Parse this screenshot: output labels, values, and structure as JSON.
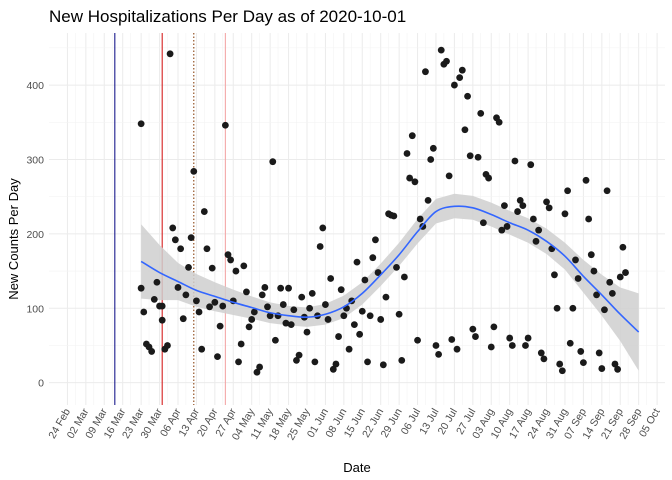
{
  "chart_data": {
    "type": "scatter",
    "title": "New Hospitalizations Per Day as of 2020-10-01",
    "xlabel": "Date",
    "ylabel": "New Counts Per Day",
    "x_domain": [
      "2020-02-17",
      "2020-10-08"
    ],
    "ylim": [
      -30,
      470
    ],
    "grid": true,
    "x_tick_dates": [
      "2020-02-24",
      "2020-03-02",
      "2020-03-09",
      "2020-03-16",
      "2020-03-23",
      "2020-03-30",
      "2020-04-06",
      "2020-04-13",
      "2020-04-20",
      "2020-04-27",
      "2020-05-04",
      "2020-05-11",
      "2020-05-18",
      "2020-05-25",
      "2020-06-01",
      "2020-06-08",
      "2020-06-15",
      "2020-06-22",
      "2020-06-29",
      "2020-07-06",
      "2020-07-13",
      "2020-07-20",
      "2020-07-27",
      "2020-08-03",
      "2020-08-10",
      "2020-08-17",
      "2020-08-24",
      "2020-08-31",
      "2020-09-07",
      "2020-09-14",
      "2020-09-21",
      "2020-09-28",
      "2020-10-05"
    ],
    "x_tick_labels": [
      "24 Feb",
      "02 Mar",
      "09 Mar",
      "16 Mar",
      "23 Mar",
      "30 Mar",
      "06 Apr",
      "13 Apr",
      "20 Apr",
      "27 Apr",
      "04 May",
      "11 May",
      "18 May",
      "25 May",
      "01 Jun",
      "08 Jun",
      "15 Jun",
      "22 Jun",
      "29 Jun",
      "06 Jul",
      "13 Jul",
      "20 Jul",
      "27 Jul",
      "03 Aug",
      "10 Aug",
      "17 Aug",
      "24 Aug",
      "31 Aug",
      "07 Sep",
      "14 Sep",
      "21 Sep",
      "28 Sep",
      "05 Oct"
    ],
    "y_ticks": [
      0,
      100,
      200,
      300,
      400
    ],
    "vertical_lines": [
      {
        "date": "2020-03-13",
        "color": "#1a1a8c",
        "style": "solid"
      },
      {
        "date": "2020-03-31",
        "color": "#d62020",
        "style": "solid"
      },
      {
        "date": "2020-04-12",
        "color": "#8b4513",
        "style": "dotted"
      },
      {
        "date": "2020-04-24",
        "color": "#f4a8a8",
        "style": "solid"
      }
    ],
    "points_color": "#1a1a1a",
    "points": [
      [
        "2020-03-23",
        348
      ],
      [
        "2020-03-23",
        127
      ],
      [
        "2020-03-24",
        95
      ],
      [
        "2020-03-25",
        52
      ],
      [
        "2020-03-26",
        48
      ],
      [
        "2020-03-27",
        42
      ],
      [
        "2020-03-28",
        112
      ],
      [
        "2020-03-29",
        135
      ],
      [
        "2020-03-30",
        103
      ],
      [
        "2020-03-31",
        103
      ],
      [
        "2020-03-31",
        84
      ],
      [
        "2020-04-01",
        45
      ],
      [
        "2020-04-02",
        50
      ],
      [
        "2020-04-03",
        442
      ],
      [
        "2020-04-04",
        208
      ],
      [
        "2020-04-05",
        192
      ],
      [
        "2020-04-06",
        128
      ],
      [
        "2020-04-07",
        180
      ],
      [
        "2020-04-08",
        86
      ],
      [
        "2020-04-09",
        118
      ],
      [
        "2020-04-10",
        155
      ],
      [
        "2020-04-11",
        195
      ],
      [
        "2020-04-12",
        284
      ],
      [
        "2020-04-13",
        110
      ],
      [
        "2020-04-14",
        95
      ],
      [
        "2020-04-15",
        45
      ],
      [
        "2020-04-16",
        230
      ],
      [
        "2020-04-17",
        180
      ],
      [
        "2020-04-18",
        102
      ],
      [
        "2020-04-19",
        154
      ],
      [
        "2020-04-20",
        108
      ],
      [
        "2020-04-21",
        35
      ],
      [
        "2020-04-22",
        76
      ],
      [
        "2020-04-23",
        103
      ],
      [
        "2020-04-24",
        346
      ],
      [
        "2020-04-25",
        172
      ],
      [
        "2020-04-26",
        165
      ],
      [
        "2020-04-27",
        110
      ],
      [
        "2020-04-28",
        150
      ],
      [
        "2020-04-29",
        28
      ],
      [
        "2020-04-30",
        52
      ],
      [
        "2020-05-01",
        157
      ],
      [
        "2020-05-02",
        122
      ],
      [
        "2020-05-03",
        75
      ],
      [
        "2020-05-04",
        85
      ],
      [
        "2020-05-05",
        95
      ],
      [
        "2020-05-06",
        14
      ],
      [
        "2020-05-07",
        21
      ],
      [
        "2020-05-08",
        118
      ],
      [
        "2020-05-09",
        128
      ],
      [
        "2020-05-10",
        102
      ],
      [
        "2020-05-11",
        90
      ],
      [
        "2020-05-12",
        297
      ],
      [
        "2020-05-13",
        57
      ],
      [
        "2020-05-14",
        90
      ],
      [
        "2020-05-15",
        127
      ],
      [
        "2020-05-16",
        105
      ],
      [
        "2020-05-17",
        80
      ],
      [
        "2020-05-18",
        127
      ],
      [
        "2020-05-19",
        78
      ],
      [
        "2020-05-20",
        98
      ],
      [
        "2020-05-21",
        30
      ],
      [
        "2020-05-22",
        37
      ],
      [
        "2020-05-23",
        115
      ],
      [
        "2020-05-24",
        88
      ],
      [
        "2020-05-25",
        68
      ],
      [
        "2020-05-26",
        100
      ],
      [
        "2020-05-27",
        120
      ],
      [
        "2020-05-28",
        28
      ],
      [
        "2020-05-29",
        90
      ],
      [
        "2020-05-30",
        183
      ],
      [
        "2020-05-31",
        208
      ],
      [
        "2020-06-01",
        105
      ],
      [
        "2020-06-02",
        85
      ],
      [
        "2020-06-03",
        140
      ],
      [
        "2020-06-04",
        18
      ],
      [
        "2020-06-05",
        25
      ],
      [
        "2020-06-06",
        62
      ],
      [
        "2020-06-07",
        125
      ],
      [
        "2020-06-08",
        90
      ],
      [
        "2020-06-09",
        100
      ],
      [
        "2020-06-10",
        45
      ],
      [
        "2020-06-11",
        110
      ],
      [
        "2020-06-12",
        78
      ],
      [
        "2020-06-13",
        162
      ],
      [
        "2020-06-14",
        65
      ],
      [
        "2020-06-15",
        96
      ],
      [
        "2020-06-16",
        138
      ],
      [
        "2020-06-17",
        28
      ],
      [
        "2020-06-18",
        90
      ],
      [
        "2020-06-19",
        168
      ],
      [
        "2020-06-20",
        192
      ],
      [
        "2020-06-21",
        148
      ],
      [
        "2020-06-22",
        85
      ],
      [
        "2020-06-23",
        24
      ],
      [
        "2020-06-24",
        115
      ],
      [
        "2020-06-25",
        227
      ],
      [
        "2020-06-26",
        225
      ],
      [
        "2020-06-27",
        224
      ],
      [
        "2020-06-28",
        155
      ],
      [
        "2020-06-29",
        92
      ],
      [
        "2020-06-30",
        30
      ],
      [
        "2020-07-01",
        142
      ],
      [
        "2020-07-02",
        308
      ],
      [
        "2020-07-03",
        275
      ],
      [
        "2020-07-04",
        332
      ],
      [
        "2020-07-05",
        270
      ],
      [
        "2020-07-06",
        57
      ],
      [
        "2020-07-07",
        220
      ],
      [
        "2020-07-08",
        210
      ],
      [
        "2020-07-09",
        418
      ],
      [
        "2020-07-10",
        245
      ],
      [
        "2020-07-11",
        300
      ],
      [
        "2020-07-12",
        315
      ],
      [
        "2020-07-13",
        50
      ],
      [
        "2020-07-14",
        38
      ],
      [
        "2020-07-15",
        447
      ],
      [
        "2020-07-16",
        428
      ],
      [
        "2020-07-17",
        432
      ],
      [
        "2020-07-18",
        278
      ],
      [
        "2020-07-19",
        58
      ],
      [
        "2020-07-20",
        400
      ],
      [
        "2020-07-21",
        45
      ],
      [
        "2020-07-22",
        410
      ],
      [
        "2020-07-23",
        420
      ],
      [
        "2020-07-24",
        340
      ],
      [
        "2020-07-25",
        385
      ],
      [
        "2020-07-26",
        305
      ],
      [
        "2020-07-27",
        72
      ],
      [
        "2020-07-28",
        62
      ],
      [
        "2020-07-29",
        303
      ],
      [
        "2020-07-30",
        362
      ],
      [
        "2020-07-31",
        215
      ],
      [
        "2020-08-01",
        280
      ],
      [
        "2020-08-02",
        275
      ],
      [
        "2020-08-03",
        48
      ],
      [
        "2020-08-04",
        75
      ],
      [
        "2020-08-05",
        356
      ],
      [
        "2020-08-06",
        350
      ],
      [
        "2020-08-07",
        205
      ],
      [
        "2020-08-08",
        238
      ],
      [
        "2020-08-09",
        210
      ],
      [
        "2020-08-10",
        60
      ],
      [
        "2020-08-11",
        50
      ],
      [
        "2020-08-12",
        298
      ],
      [
        "2020-08-13",
        230
      ],
      [
        "2020-08-14",
        245
      ],
      [
        "2020-08-15",
        238
      ],
      [
        "2020-08-16",
        50
      ],
      [
        "2020-08-17",
        60
      ],
      [
        "2020-08-18",
        293
      ],
      [
        "2020-08-19",
        220
      ],
      [
        "2020-08-20",
        190
      ],
      [
        "2020-08-21",
        205
      ],
      [
        "2020-08-22",
        40
      ],
      [
        "2020-08-23",
        32
      ],
      [
        "2020-08-24",
        243
      ],
      [
        "2020-08-25",
        235
      ],
      [
        "2020-08-26",
        180
      ],
      [
        "2020-08-27",
        145
      ],
      [
        "2020-08-28",
        100
      ],
      [
        "2020-08-29",
        25
      ],
      [
        "2020-08-30",
        16
      ],
      [
        "2020-08-31",
        227
      ],
      [
        "2020-09-01",
        258
      ],
      [
        "2020-09-02",
        53
      ],
      [
        "2020-09-03",
        100
      ],
      [
        "2020-09-04",
        165
      ],
      [
        "2020-09-05",
        140
      ],
      [
        "2020-09-06",
        42
      ],
      [
        "2020-09-07",
        27
      ],
      [
        "2020-09-08",
        272
      ],
      [
        "2020-09-09",
        220
      ],
      [
        "2020-09-10",
        172
      ],
      [
        "2020-09-11",
        150
      ],
      [
        "2020-09-12",
        118
      ],
      [
        "2020-09-13",
        40
      ],
      [
        "2020-09-14",
        19
      ],
      [
        "2020-09-15",
        98
      ],
      [
        "2020-09-16",
        258
      ],
      [
        "2020-09-17",
        135
      ],
      [
        "2020-09-18",
        120
      ],
      [
        "2020-09-19",
        25
      ],
      [
        "2020-09-20",
        18
      ],
      [
        "2020-09-21",
        142
      ],
      [
        "2020-09-22",
        182
      ],
      [
        "2020-09-23",
        148
      ]
    ],
    "trend_color": "#3366ff",
    "band_color": "#cfcfcf",
    "trend": [
      [
        "2020-03-23",
        163,
        213,
        113
      ],
      [
        "2020-03-30",
        148,
        185,
        111
      ],
      [
        "2020-04-06",
        136,
        161,
        111
      ],
      [
        "2020-04-13",
        124,
        146,
        102
      ],
      [
        "2020-04-20",
        116,
        135,
        96
      ],
      [
        "2020-04-27",
        108,
        125,
        91
      ],
      [
        "2020-05-04",
        101,
        116,
        86
      ],
      [
        "2020-05-11",
        94,
        108,
        80
      ],
      [
        "2020-05-18",
        90,
        103,
        77
      ],
      [
        "2020-05-25",
        88,
        101,
        75
      ],
      [
        "2020-06-01",
        92,
        106,
        78
      ],
      [
        "2020-06-08",
        102,
        117,
        87
      ],
      [
        "2020-06-15",
        120,
        135,
        105
      ],
      [
        "2020-06-22",
        145,
        160,
        130
      ],
      [
        "2020-06-29",
        172,
        188,
        157
      ],
      [
        "2020-07-06",
        203,
        220,
        187
      ],
      [
        "2020-07-13",
        230,
        247,
        214
      ],
      [
        "2020-07-20",
        237,
        254,
        221
      ],
      [
        "2020-07-27",
        235,
        251,
        219
      ],
      [
        "2020-08-03",
        226,
        242,
        210
      ],
      [
        "2020-08-10",
        215,
        231,
        199
      ],
      [
        "2020-08-17",
        205,
        221,
        188
      ],
      [
        "2020-08-24",
        190,
        207,
        173
      ],
      [
        "2020-08-31",
        170,
        188,
        152
      ],
      [
        "2020-09-07",
        143,
        165,
        121
      ],
      [
        "2020-09-14",
        118,
        145,
        90
      ],
      [
        "2020-09-21",
        92,
        128,
        56
      ],
      [
        "2020-09-28",
        68,
        120,
        16
      ]
    ]
  }
}
